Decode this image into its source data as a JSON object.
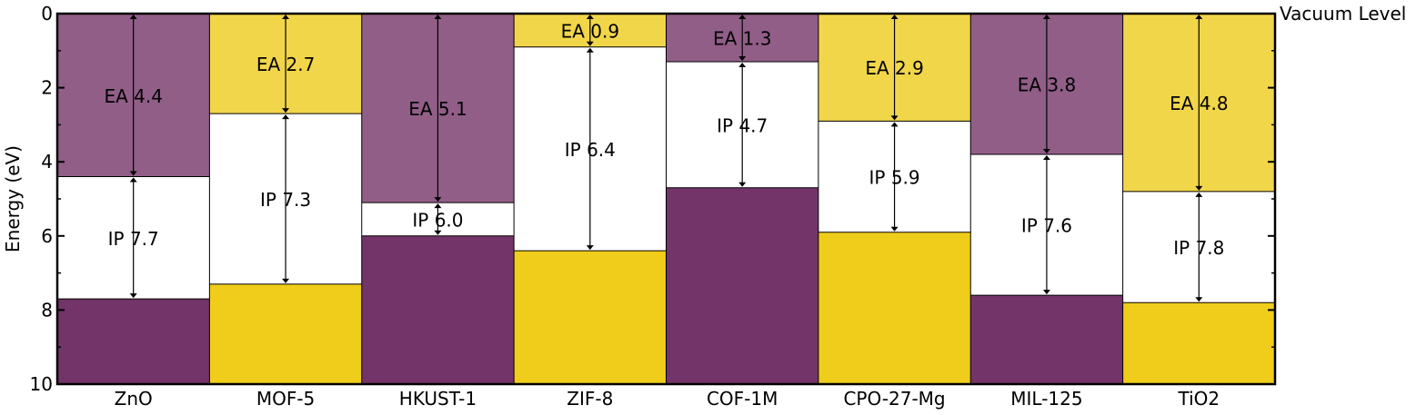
{
  "chart_data": {
    "type": "bar",
    "ylabel": "Energy (eV)",
    "ylim": [
      10,
      0
    ],
    "y_inverted": true,
    "yticks": [
      "0",
      "2",
      "4",
      "6",
      "8",
      "10"
    ],
    "vacuum_label": "Vacuum Level",
    "ea_prefix": "EA",
    "ip_prefix": "IP",
    "categories": [
      "ZnO",
      "MOF-5",
      "HKUST-1",
      "ZIF-8",
      "COF-1M",
      "CPO-27-Mg",
      "MIL-125",
      "TiO2"
    ],
    "series": [
      {
        "name": "EA",
        "values": [
          4.4,
          2.7,
          5.1,
          0.9,
          1.3,
          2.9,
          3.8,
          4.8
        ]
      },
      {
        "name": "IP",
        "values": [
          7.7,
          7.3,
          6.0,
          6.4,
          4.7,
          5.9,
          7.6,
          7.8
        ]
      }
    ],
    "band_colors": [
      "purple",
      "yellow",
      "purple",
      "yellow",
      "purple",
      "yellow",
      "purple",
      "yellow"
    ],
    "colors": {
      "purple_top": "#915e88",
      "purple_bottom": "#733469",
      "yellow_top": "#f2d64a",
      "yellow_bottom": "#efcd1a",
      "gap": "#ffffff",
      "axis": "#000000"
    }
  }
}
